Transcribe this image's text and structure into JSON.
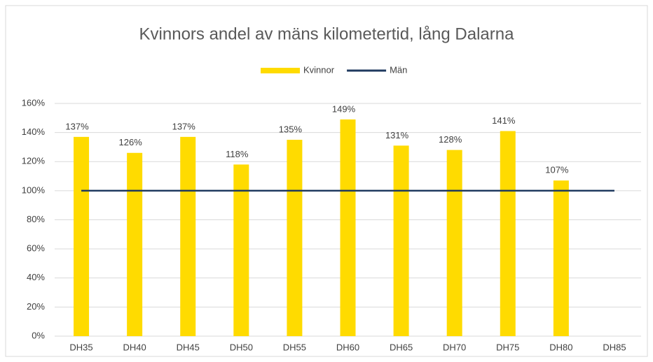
{
  "chart_data": {
    "type": "bar",
    "title": "Kvinnors andel av mäns kilometertid, lång Dalarna",
    "categories": [
      "DH35",
      "DH40",
      "DH45",
      "DH50",
      "DH55",
      "DH60",
      "DH65",
      "DH70",
      "DH75",
      "DH80",
      "DH85"
    ],
    "series": [
      {
        "name": "Kvinnor",
        "type": "bar",
        "color": "#ffdb00",
        "values": [
          137,
          126,
          137,
          118,
          135,
          149,
          131,
          128,
          141,
          107,
          null
        ],
        "value_labels": [
          "137%",
          "126%",
          "137%",
          "118%",
          "135%",
          "149%",
          "131%",
          "128%",
          "141%",
          "107%",
          null
        ]
      },
      {
        "name": "Män",
        "type": "line",
        "color": "#1f3a5f",
        "values": [
          100,
          100,
          100,
          100,
          100,
          100,
          100,
          100,
          100,
          100,
          100
        ]
      }
    ],
    "ylim": [
      0,
      160
    ],
    "yticks": [
      {
        "value": 0,
        "label": "0%"
      },
      {
        "value": 20,
        "label": "20%"
      },
      {
        "value": 40,
        "label": "40%"
      },
      {
        "value": 60,
        "label": "60%"
      },
      {
        "value": 80,
        "label": "80%"
      },
      {
        "value": 100,
        "label": "100%"
      },
      {
        "value": 120,
        "label": "120%"
      },
      {
        "value": 140,
        "label": "140%"
      },
      {
        "value": 160,
        "label": "160%"
      }
    ],
    "grid": true,
    "legend": "top"
  }
}
